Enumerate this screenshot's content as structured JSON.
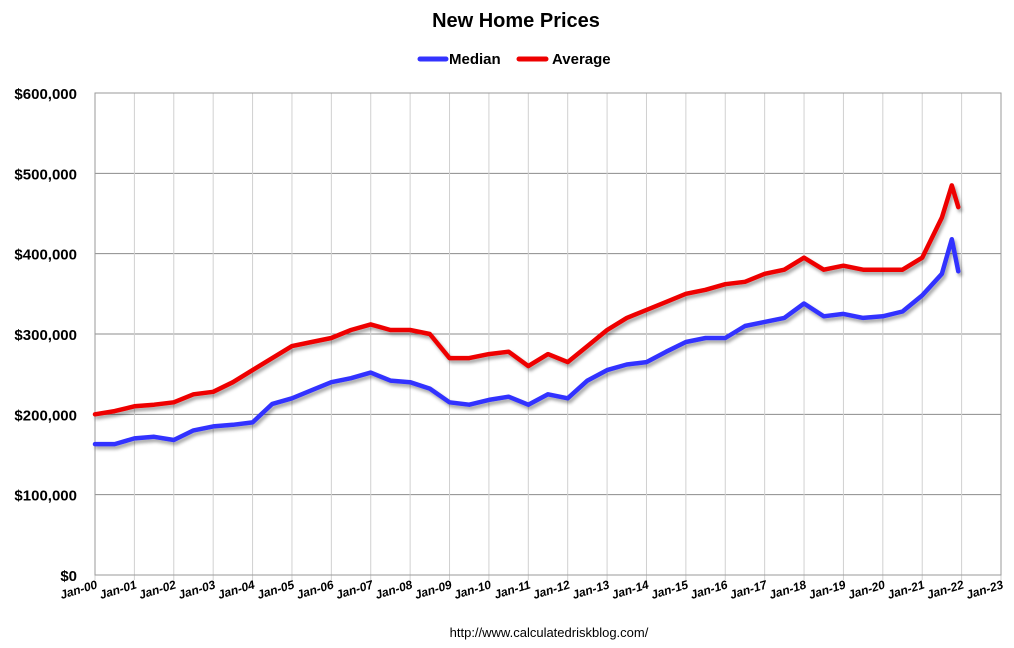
{
  "chart_data": {
    "type": "line",
    "title": "New Home Prices",
    "source": "http://www.calculatedriskblog.com/",
    "xlabel": "",
    "ylabel": "",
    "ylim": [
      0,
      600000
    ],
    "xlim": [
      "Jan-00",
      "Jan-23"
    ],
    "grid": true,
    "legend_position": "top-center",
    "y_ticks": [
      "$0",
      "$100,000",
      "$200,000",
      "$300,000",
      "$400,000",
      "$500,000",
      "$600,000"
    ],
    "x_ticks": [
      "Jan-00",
      "Jan-01",
      "Jan-02",
      "Jan-03",
      "Jan-04",
      "Jan-05",
      "Jan-06",
      "Jan-07",
      "Jan-08",
      "Jan-09",
      "Jan-10",
      "Jan-11",
      "Jan-12",
      "Jan-13",
      "Jan-14",
      "Jan-15",
      "Jan-16",
      "Jan-17",
      "Jan-18",
      "Jan-19",
      "Jan-20",
      "Jan-21",
      "Jan-22",
      "Jan-23"
    ],
    "x": [
      "Jan-00",
      "Jul-00",
      "Jan-01",
      "Jul-01",
      "Jan-02",
      "Jul-02",
      "Jan-03",
      "Jul-03",
      "Jan-04",
      "Jul-04",
      "Jan-05",
      "Jul-05",
      "Jan-06",
      "Jul-06",
      "Jan-07",
      "Jul-07",
      "Jan-08",
      "Jul-08",
      "Jan-09",
      "Jul-09",
      "Jan-10",
      "Jul-10",
      "Jan-11",
      "Jul-11",
      "Jan-12",
      "Jul-12",
      "Jan-13",
      "Jul-13",
      "Jan-14",
      "Jul-14",
      "Jan-15",
      "Jul-15",
      "Jan-16",
      "Jul-16",
      "Jan-17",
      "Jul-17",
      "Jan-18",
      "Jul-18",
      "Jan-19",
      "Jul-19",
      "Jan-20",
      "Jul-20",
      "Jan-21",
      "Jul-21",
      "Oct-21",
      "Dec-21"
    ],
    "series": [
      {
        "name": "Median",
        "color": "#3333ff",
        "values": [
          163000,
          163000,
          170000,
          172000,
          168000,
          180000,
          185000,
          187000,
          190000,
          213000,
          220000,
          230000,
          240000,
          245000,
          252000,
          242000,
          240000,
          232000,
          215000,
          212000,
          218000,
          222000,
          212000,
          225000,
          220000,
          242000,
          255000,
          262000,
          265000,
          278000,
          290000,
          295000,
          295000,
          310000,
          315000,
          320000,
          338000,
          322000,
          325000,
          320000,
          322000,
          328000,
          348000,
          375000,
          418000,
          378000
        ]
      },
      {
        "name": "Average",
        "color": "#ee0000",
        "values": [
          200000,
          204000,
          210000,
          212000,
          215000,
          225000,
          228000,
          240000,
          255000,
          270000,
          285000,
          290000,
          295000,
          305000,
          312000,
          305000,
          305000,
          300000,
          270000,
          270000,
          275000,
          278000,
          260000,
          275000,
          265000,
          285000,
          305000,
          320000,
          330000,
          340000,
          350000,
          355000,
          362000,
          365000,
          375000,
          380000,
          395000,
          380000,
          385000,
          380000,
          380000,
          380000,
          395000,
          445000,
          485000,
          458000
        ]
      }
    ]
  }
}
